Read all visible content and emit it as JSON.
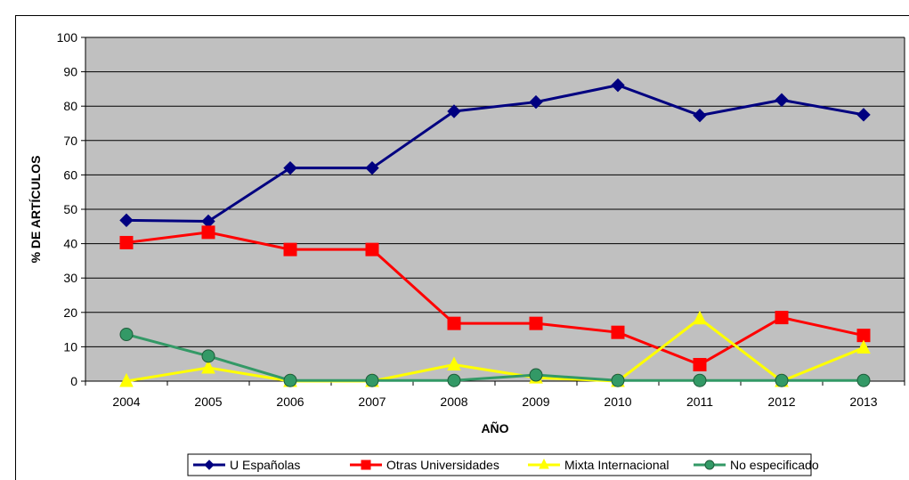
{
  "chart_data": {
    "type": "line",
    "title": "",
    "xlabel": "AÑO",
    "ylabel": "% DE ARTÍCULOS",
    "categories": [
      "2004",
      "2005",
      "2006",
      "2007",
      "2008",
      "2009",
      "2010",
      "2011",
      "2012",
      "2013"
    ],
    "ylim": [
      0,
      100
    ],
    "yticks": [
      0,
      10,
      20,
      30,
      40,
      50,
      60,
      70,
      80,
      90,
      100
    ],
    "grid": true,
    "legend": "bottom",
    "plot_background": "#c0c0c0",
    "series": [
      {
        "name": "U Españolas",
        "color": "#000080",
        "marker": "diamond",
        "values": [
          46.8,
          46.5,
          62,
          62,
          78.5,
          81.2,
          86.1,
          77.3,
          81.8,
          77.5
        ]
      },
      {
        "name": "Otras Universidades",
        "color": "#ff0000",
        "marker": "square",
        "values": [
          40.3,
          43.3,
          38.3,
          38.3,
          16.8,
          16.8,
          14.2,
          4.8,
          18.5,
          13.3
        ]
      },
      {
        "name": "Mixta Internacional",
        "color": "#ffff00",
        "marker": "triangle",
        "values": [
          0,
          3.9,
          0,
          0,
          4.8,
          1.0,
          0,
          18.2,
          0,
          9.7
        ]
      },
      {
        "name": "No especificado",
        "color": "#339966",
        "marker": "circle",
        "values": [
          13.6,
          7.3,
          0.2,
          0.2,
          0.2,
          1.8,
          0.2,
          0.2,
          0.2,
          0.2
        ]
      }
    ]
  }
}
